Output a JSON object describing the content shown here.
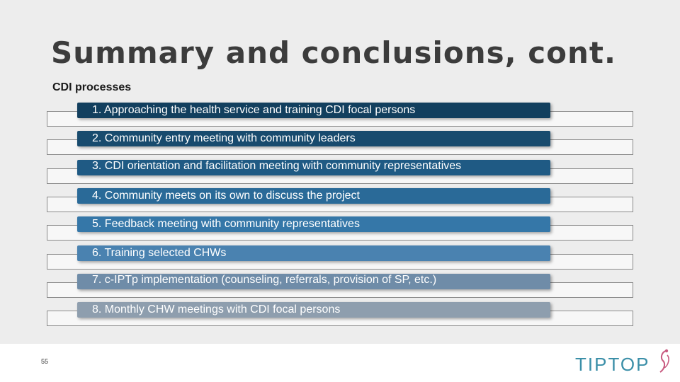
{
  "title": "Summary and conclusions, cont.",
  "subtitle": "CDI processes",
  "steps": [
    {
      "label": "1. Approaching the health service and training CDI focal persons",
      "color": "#123f5e"
    },
    {
      "label": "2. Community entry meeting with community leaders",
      "color": "#184b6e"
    },
    {
      "label": "3. CDI orientation and facilitation meeting with community representatives",
      "color": "#1f5a84"
    },
    {
      "label": "4. Community meets on its own to discuss the project",
      "color": "#2a6a98"
    },
    {
      "label": "5. Feedback meeting with community representatives",
      "color": "#3577a8"
    },
    {
      "label": "6. Training selected CHWs",
      "color": "#4a82b0"
    },
    {
      "label": "7. c-IPTp implementation (counseling, referrals, provision of SP, etc.)",
      "color": "#6f8ca8"
    },
    {
      "label": "8. Monthly CHW meetings with CDI focal persons",
      "color": "#8e9eae"
    }
  ],
  "page_number": "55",
  "logo": {
    "text_main": "TIPTOP",
    "accent_color": "#c85a80",
    "brand_color": "#3b8fa8"
  }
}
